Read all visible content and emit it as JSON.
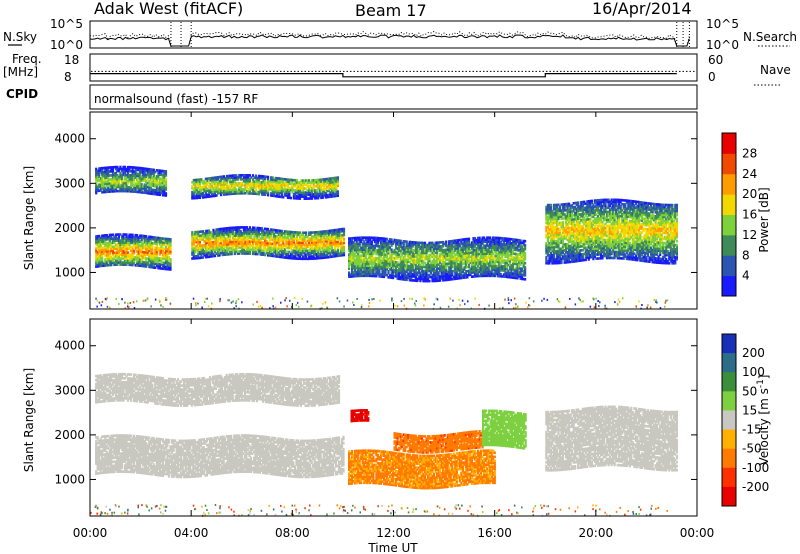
{
  "header": {
    "radar": "Adak West (fitACF)",
    "beam": "Beam 17",
    "date": "16/Apr/2014"
  },
  "top_panel": {
    "left_label": "N.Sky",
    "right_label": "N.Search",
    "left_ticks": [
      "10^5",
      "10^0"
    ],
    "right_ticks": [
      "10^5",
      "10^0"
    ]
  },
  "freq_panel": {
    "left_label_1": "Freq.",
    "left_label_2": "[MHz]",
    "left_ticks": [
      "18",
      "8"
    ],
    "right_ticks": [
      "60",
      "0"
    ],
    "right_label": "Nave",
    "cpid_label": "CPID"
  },
  "cpid_text": "normalsound (fast) -157 RF",
  "x_axis": {
    "ticks": [
      "00:00",
      "04:00",
      "08:00",
      "12:00",
      "16:00",
      "20:00",
      "00:00"
    ],
    "label": "Time UT"
  },
  "y_axis": {
    "label": "Slant Range [km]",
    "ticks": [
      "1000",
      "2000",
      "3000",
      "4000"
    ]
  },
  "power_colorbar": {
    "label": "Power [dB]",
    "ticks": [
      "4",
      "8",
      "12",
      "16",
      "20",
      "24",
      "28"
    ],
    "colors": [
      "#1a1aff",
      "#2a55b0",
      "#3e8a58",
      "#7dd23c",
      "#f0d800",
      "#ff9c00",
      "#f04a00",
      "#e80000"
    ]
  },
  "velocity_colorbar": {
    "label": "Velocity [m s",
    "label_sup": "-1",
    "label_end": "]",
    "ticks": [
      "200",
      "100",
      "50",
      "15",
      "-15",
      "-50",
      "-100",
      "-200"
    ],
    "colors": [
      "#1a2fb8",
      "#2c6e8a",
      "#3b8f3a",
      "#7dd040",
      "#c8c8c0",
      "#ffb000",
      "#ff7a00",
      "#ff3000",
      "#e80000"
    ]
  },
  "chart_data": {
    "type": "heatmap",
    "title": "Adak West (fitACF) Beam 17 16/Apr/2014",
    "xlabel": "Time UT",
    "ylabel": "Slant Range [km]",
    "xlim": [
      0,
      24
    ],
    "ylim": [
      180,
      4600
    ],
    "data_gaps_hours": [
      [
        3.2,
        4.0
      ],
      [
        23.2,
        23.7
      ]
    ],
    "power_bands": [
      {
        "t0": 0.2,
        "t1": 3.2,
        "r0": 1100,
        "r1": 1800,
        "peak_db": 24
      },
      {
        "t0": 0.2,
        "t1": 3.0,
        "r0": 2750,
        "r1": 3300,
        "peak_db": 16
      },
      {
        "t0": 4.0,
        "t1": 10.0,
        "r0": 1350,
        "r1": 1950,
        "peak_db": 24
      },
      {
        "t0": 4.0,
        "t1": 9.8,
        "r0": 2700,
        "r1": 3150,
        "peak_db": 20
      },
      {
        "t0": 10.2,
        "t1": 17.2,
        "r0": 850,
        "r1": 1750,
        "peak_db": 16
      },
      {
        "t0": 18.0,
        "t1": 23.2,
        "r0": 1250,
        "r1": 2600,
        "peak_db": 20
      }
    ],
    "velocity_bands": [
      {
        "t0": 0.2,
        "t1": 10.0,
        "r0": 1100,
        "r1": 1950,
        "velocity": 0
      },
      {
        "t0": 0.2,
        "t1": 9.8,
        "r0": 2700,
        "r1": 3300,
        "velocity": 0
      },
      {
        "t0": 10.2,
        "t1": 16.0,
        "r0": 850,
        "r1": 1600,
        "velocity": -60
      },
      {
        "t0": 12.0,
        "t1": 15.5,
        "r0": 1650,
        "r1": 2050,
        "velocity": -80
      },
      {
        "t0": 15.5,
        "t1": 17.2,
        "r0": 1700,
        "r1": 2500,
        "velocity": 30
      },
      {
        "t0": 10.3,
        "t1": 11.0,
        "r0": 2250,
        "r1": 2500,
        "velocity": -220
      },
      {
        "t0": 18.0,
        "t1": 23.2,
        "r0": 1250,
        "r1": 2600,
        "velocity": 0
      }
    ],
    "frequency_mhz_steps": [
      [
        0,
        3.2,
        12
      ],
      [
        4.0,
        10.0,
        12
      ],
      [
        10.0,
        18.0,
        10
      ],
      [
        18.0,
        23.2,
        12
      ]
    ],
    "nave": 20
  }
}
